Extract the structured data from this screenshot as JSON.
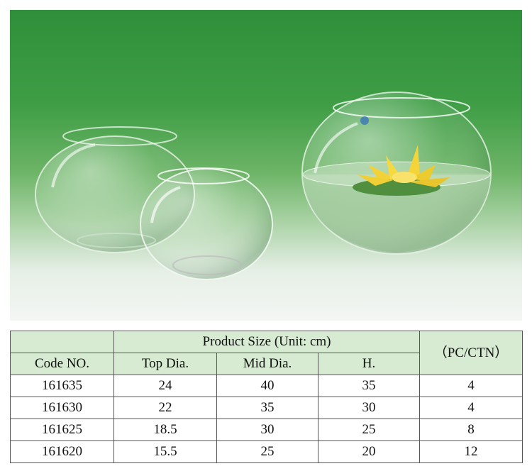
{
  "image": {
    "icon": "glass-fishbowl-vases-photo"
  },
  "table": {
    "group_header": "Product Size (Unit: cm)",
    "headers": {
      "code": "Code NO.",
      "top": "Top Dia.",
      "mid": "Mid Dia.",
      "height": "H.",
      "pc": "（PC/CTN）"
    },
    "rows": [
      {
        "code": "161635",
        "top": "24",
        "mid": "40",
        "height": "35",
        "pc": "4"
      },
      {
        "code": "161630",
        "top": "22",
        "mid": "35",
        "height": "30",
        "pc": "4"
      },
      {
        "code": "161625",
        "top": "18.5",
        "mid": "30",
        "height": "25",
        "pc": "8"
      },
      {
        "code": "161620",
        "top": "15.5",
        "mid": "25",
        "height": "20",
        "pc": "12"
      }
    ]
  },
  "colors": {
    "header_bg": "#d7ebd2",
    "backdrop_green": "#2f8f3a"
  }
}
